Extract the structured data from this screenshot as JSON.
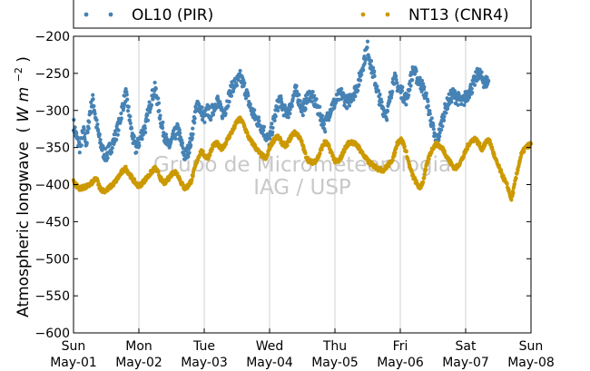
{
  "chart_data": {
    "type": "scatter",
    "title": "",
    "ylabel": "Atmospheric longwave (Wm^-2)",
    "ylabel_main": "Atmospheric longwave",
    "ylabel_unit_open": "(",
    "ylabel_unit_W": "W",
    "ylabel_unit_m": "m",
    "ylabel_unit_exp": "−2",
    "ylabel_unit_close": ")",
    "ylim": [
      -600,
      -200
    ],
    "yticks": [
      -200,
      -250,
      -300,
      -350,
      -400,
      -450,
      -500,
      -550,
      -600
    ],
    "ytick_labels": [
      "−200",
      "−250",
      "−300",
      "−350",
      "−400",
      "−450",
      "−500",
      "−550",
      "−600"
    ],
    "xlim": [
      0,
      7
    ],
    "xticks": [
      {
        "day": "Sun",
        "date": "May-01"
      },
      {
        "day": "Mon",
        "date": "May-02"
      },
      {
        "day": "Tue",
        "date": "May-03"
      },
      {
        "day": "Wed",
        "date": "May-04"
      },
      {
        "day": "Thu",
        "date": "May-05"
      },
      {
        "day": "Fri",
        "date": "May-06"
      },
      {
        "day": "Sat",
        "date": "May-07"
      },
      {
        "day": "Sun",
        "date": "May-08"
      }
    ],
    "grid": "vertical",
    "legend_position": "top",
    "watermark": {
      "line1": "Grupo de Micrometeorologia",
      "line2": "IAG / USP"
    },
    "series": [
      {
        "name": "OL10 (PIR)",
        "color": "#4682b4",
        "points": [
          [
            0.0,
            -318
          ],
          [
            0.05,
            -338
          ],
          [
            0.1,
            -350
          ],
          [
            0.15,
            -328
          ],
          [
            0.2,
            -345
          ],
          [
            0.25,
            -302
          ],
          [
            0.3,
            -285
          ],
          [
            0.35,
            -318
          ],
          [
            0.4,
            -340
          ],
          [
            0.45,
            -355
          ],
          [
            0.5,
            -362
          ],
          [
            0.55,
            -352
          ],
          [
            0.6,
            -345
          ],
          [
            0.65,
            -332
          ],
          [
            0.7,
            -318
          ],
          [
            0.75,
            -295
          ],
          [
            0.8,
            -278
          ],
          [
            0.85,
            -305
          ],
          [
            0.9,
            -335
          ],
          [
            0.95,
            -352
          ],
          [
            1.0,
            -343
          ],
          [
            1.05,
            -330
          ],
          [
            1.1,
            -322
          ],
          [
            1.15,
            -300
          ],
          [
            1.2,
            -282
          ],
          [
            1.25,
            -270
          ],
          [
            1.3,
            -295
          ],
          [
            1.35,
            -320
          ],
          [
            1.4,
            -335
          ],
          [
            1.45,
            -350
          ],
          [
            1.5,
            -342
          ],
          [
            1.55,
            -332
          ],
          [
            1.6,
            -325
          ],
          [
            1.65,
            -345
          ],
          [
            1.7,
            -362
          ],
          [
            1.75,
            -355
          ],
          [
            1.8,
            -340
          ],
          [
            1.85,
            -310
          ],
          [
            1.9,
            -290
          ],
          [
            1.95,
            -300
          ],
          [
            2.0,
            -310
          ],
          [
            2.05,
            -300
          ],
          [
            2.1,
            -305
          ],
          [
            2.15,
            -295
          ],
          [
            2.2,
            -285
          ],
          [
            2.25,
            -300
          ],
          [
            2.3,
            -305
          ],
          [
            2.35,
            -290
          ],
          [
            2.4,
            -275
          ],
          [
            2.45,
            -265
          ],
          [
            2.5,
            -262
          ],
          [
            2.55,
            -255
          ],
          [
            2.6,
            -265
          ],
          [
            2.65,
            -278
          ],
          [
            2.7,
            -295
          ],
          [
            2.75,
            -305
          ],
          [
            2.8,
            -312
          ],
          [
            2.85,
            -318
          ],
          [
            2.9,
            -325
          ],
          [
            2.95,
            -335
          ],
          [
            3.0,
            -340
          ],
          [
            3.05,
            -320
          ],
          [
            3.1,
            -300
          ],
          [
            3.15,
            -285
          ],
          [
            3.2,
            -295
          ],
          [
            3.25,
            -305
          ],
          [
            3.3,
            -300
          ],
          [
            3.35,
            -285
          ],
          [
            3.4,
            -273
          ],
          [
            3.45,
            -285
          ],
          [
            3.5,
            -300
          ],
          [
            3.55,
            -290
          ],
          [
            3.6,
            -278
          ],
          [
            3.65,
            -282
          ],
          [
            3.7,
            -290
          ],
          [
            3.75,
            -300
          ],
          [
            3.8,
            -312
          ],
          [
            3.85,
            -320
          ],
          [
            3.9,
            -305
          ],
          [
            3.95,
            -295
          ],
          [
            4.0,
            -290
          ],
          [
            4.05,
            -282
          ],
          [
            4.1,
            -278
          ],
          [
            4.15,
            -285
          ],
          [
            4.2,
            -290
          ],
          [
            4.25,
            -280
          ],
          [
            4.3,
            -275
          ],
          [
            4.35,
            -265
          ],
          [
            4.4,
            -250
          ],
          [
            4.45,
            -230
          ],
          [
            4.5,
            -215
          ],
          [
            4.55,
            -240
          ],
          [
            4.6,
            -255
          ],
          [
            4.65,
            -275
          ],
          [
            4.7,
            -290
          ],
          [
            4.75,
            -300
          ],
          [
            4.8,
            -305
          ],
          [
            4.85,
            -280
          ],
          [
            4.9,
            -255
          ],
          [
            4.95,
            -265
          ],
          [
            5.0,
            -272
          ],
          [
            5.05,
            -280
          ],
          [
            5.1,
            -285
          ],
          [
            5.15,
            -262
          ],
          [
            5.2,
            -245
          ],
          [
            5.25,
            -255
          ],
          [
            5.3,
            -262
          ],
          [
            5.35,
            -270
          ],
          [
            5.4,
            -285
          ],
          [
            5.45,
            -305
          ],
          [
            5.5,
            -325
          ],
          [
            5.55,
            -345
          ],
          [
            5.6,
            -330
          ],
          [
            5.65,
            -310
          ],
          [
            5.7,
            -295
          ],
          [
            5.75,
            -285
          ],
          [
            5.8,
            -278
          ],
          [
            5.85,
            -282
          ],
          [
            5.9,
            -285
          ],
          [
            5.95,
            -290
          ],
          [
            6.0,
            -282
          ],
          [
            6.05,
            -275
          ],
          [
            6.1,
            -268
          ],
          [
            6.15,
            -258
          ],
          [
            6.2,
            -248
          ],
          [
            6.25,
            -258
          ],
          [
            6.3,
            -262
          ],
          [
            6.35,
            -260
          ]
        ]
      },
      {
        "name": "NT13 (CNR4)",
        "color": "#cc9900",
        "points": [
          [
            0.0,
            -395
          ],
          [
            0.05,
            -402
          ],
          [
            0.1,
            -405
          ],
          [
            0.15,
            -404
          ],
          [
            0.2,
            -403
          ],
          [
            0.25,
            -400
          ],
          [
            0.3,
            -396
          ],
          [
            0.35,
            -392
          ],
          [
            0.4,
            -404
          ],
          [
            0.45,
            -408
          ],
          [
            0.5,
            -408
          ],
          [
            0.55,
            -404
          ],
          [
            0.6,
            -400
          ],
          [
            0.65,
            -395
          ],
          [
            0.7,
            -388
          ],
          [
            0.75,
            -382
          ],
          [
            0.8,
            -378
          ],
          [
            0.85,
            -385
          ],
          [
            0.9,
            -392
          ],
          [
            0.95,
            -398
          ],
          [
            1.0,
            -402
          ],
          [
            1.05,
            -398
          ],
          [
            1.1,
            -393
          ],
          [
            1.15,
            -388
          ],
          [
            1.2,
            -382
          ],
          [
            1.25,
            -378
          ],
          [
            1.3,
            -385
          ],
          [
            1.35,
            -395
          ],
          [
            1.4,
            -398
          ],
          [
            1.45,
            -392
          ],
          [
            1.5,
            -386
          ],
          [
            1.55,
            -382
          ],
          [
            1.6,
            -387
          ],
          [
            1.65,
            -398
          ],
          [
            1.7,
            -405
          ],
          [
            1.75,
            -402
          ],
          [
            1.8,
            -395
          ],
          [
            1.85,
            -380
          ],
          [
            1.9,
            -365
          ],
          [
            1.95,
            -355
          ],
          [
            2.0,
            -360
          ],
          [
            2.05,
            -365
          ],
          [
            2.1,
            -355
          ],
          [
            2.15,
            -345
          ],
          [
            2.2,
            -345
          ],
          [
            2.25,
            -352
          ],
          [
            2.3,
            -348
          ],
          [
            2.35,
            -340
          ],
          [
            2.4,
            -332
          ],
          [
            2.45,
            -325
          ],
          [
            2.5,
            -315
          ],
          [
            2.55,
            -312
          ],
          [
            2.6,
            -318
          ],
          [
            2.65,
            -330
          ],
          [
            2.7,
            -340
          ],
          [
            2.75,
            -345
          ],
          [
            2.8,
            -352
          ],
          [
            2.85,
            -358
          ],
          [
            2.9,
            -362
          ],
          [
            2.95,
            -365
          ],
          [
            3.0,
            -350
          ],
          [
            3.05,
            -342
          ],
          [
            3.1,
            -335
          ],
          [
            3.15,
            -338
          ],
          [
            3.2,
            -345
          ],
          [
            3.25,
            -348
          ],
          [
            3.3,
            -340
          ],
          [
            3.35,
            -332
          ],
          [
            3.4,
            -330
          ],
          [
            3.45,
            -335
          ],
          [
            3.5,
            -345
          ],
          [
            3.55,
            -360
          ],
          [
            3.6,
            -368
          ],
          [
            3.65,
            -370
          ],
          [
            3.7,
            -368
          ],
          [
            3.75,
            -362
          ],
          [
            3.8,
            -350
          ],
          [
            3.85,
            -342
          ],
          [
            3.9,
            -348
          ],
          [
            3.95,
            -358
          ],
          [
            4.0,
            -368
          ],
          [
            4.05,
            -370
          ],
          [
            4.1,
            -362
          ],
          [
            4.15,
            -352
          ],
          [
            4.2,
            -345
          ],
          [
            4.25,
            -342
          ],
          [
            4.3,
            -345
          ],
          [
            4.35,
            -348
          ],
          [
            4.4,
            -355
          ],
          [
            4.45,
            -362
          ],
          [
            4.5,
            -368
          ],
          [
            4.55,
            -372
          ],
          [
            4.6,
            -375
          ],
          [
            4.65,
            -378
          ],
          [
            4.7,
            -380
          ],
          [
            4.75,
            -380
          ],
          [
            4.8,
            -375
          ],
          [
            4.85,
            -370
          ],
          [
            4.9,
            -362
          ],
          [
            4.95,
            -345
          ],
          [
            5.0,
            -338
          ],
          [
            5.05,
            -345
          ],
          [
            5.1,
            -360
          ],
          [
            5.15,
            -378
          ],
          [
            5.2,
            -390
          ],
          [
            5.25,
            -398
          ],
          [
            5.3,
            -405
          ],
          [
            5.35,
            -395
          ],
          [
            5.4,
            -375
          ],
          [
            5.45,
            -360
          ],
          [
            5.5,
            -350
          ],
          [
            5.55,
            -345
          ],
          [
            5.6,
            -348
          ],
          [
            5.65,
            -352
          ],
          [
            5.7,
            -360
          ],
          [
            5.75,
            -368
          ],
          [
            5.8,
            -375
          ],
          [
            5.85,
            -378
          ],
          [
            5.9,
            -372
          ],
          [
            5.95,
            -365
          ],
          [
            6.0,
            -355
          ],
          [
            6.05,
            -345
          ],
          [
            6.1,
            -340
          ],
          [
            6.15,
            -338
          ],
          [
            6.2,
            -345
          ],
          [
            6.25,
            -352
          ],
          [
            6.3,
            -345
          ],
          [
            6.35,
            -338
          ],
          [
            6.4,
            -350
          ],
          [
            6.45,
            -365
          ],
          [
            6.5,
            -375
          ],
          [
            6.55,
            -385
          ],
          [
            6.6,
            -395
          ],
          [
            6.65,
            -405
          ],
          [
            6.7,
            -420
          ],
          [
            6.75,
            -400
          ],
          [
            6.8,
            -378
          ],
          [
            6.85,
            -360
          ],
          [
            6.9,
            -352
          ],
          [
            6.95,
            -348
          ],
          [
            7.0,
            -345
          ]
        ]
      }
    ]
  }
}
